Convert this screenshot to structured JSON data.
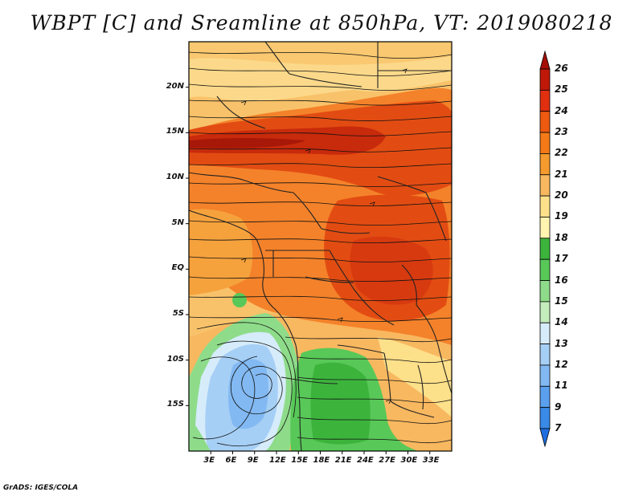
{
  "title": "WBPT [C] and Sreamline at 850hPa, VT: 2019080218",
  "footer": "GrADS: IGES/COLA",
  "map": {
    "lon_range": [
      0,
      36
    ],
    "lat_range": [
      -20,
      25
    ],
    "lat_ticks": [
      {
        "value": 20,
        "label": "20N"
      },
      {
        "value": 15,
        "label": "15N"
      },
      {
        "value": 10,
        "label": "10N"
      },
      {
        "value": 5,
        "label": "5N"
      },
      {
        "value": 0,
        "label": "EQ"
      },
      {
        "value": -5,
        "label": "5S"
      },
      {
        "value": -10,
        "label": "10S"
      },
      {
        "value": -15,
        "label": "15S"
      }
    ],
    "lon_ticks": [
      {
        "value": 3,
        "label": "3E"
      },
      {
        "value": 6,
        "label": "6E"
      },
      {
        "value": 9,
        "label": "9E"
      },
      {
        "value": 12,
        "label": "12E"
      },
      {
        "value": 15,
        "label": "15E"
      },
      {
        "value": 18,
        "label": "18E"
      },
      {
        "value": 21,
        "label": "21E"
      },
      {
        "value": 24,
        "label": "24E"
      },
      {
        "value": 27,
        "label": "27E"
      },
      {
        "value": 30,
        "label": "30E"
      },
      {
        "value": 33,
        "label": "33E"
      }
    ]
  },
  "colorbar": {
    "levels": [
      "7",
      "9",
      "11",
      "12",
      "13",
      "14",
      "15",
      "16",
      "17",
      "18",
      "19",
      "20",
      "21",
      "22",
      "23",
      "24",
      "25",
      "26"
    ],
    "colors": [
      "#1e6ee0",
      "#3a8ae8",
      "#5aa0ee",
      "#82b9f2",
      "#a6cff6",
      "#d6ecfa",
      "#c4ecbc",
      "#8edc8a",
      "#58c858",
      "#3cb43c",
      "#fff4b0",
      "#fde08a",
      "#f8b860",
      "#f59a2e",
      "#f47a18",
      "#ee5a10",
      "#e03010",
      "#c01808",
      "#a41006"
    ]
  }
}
